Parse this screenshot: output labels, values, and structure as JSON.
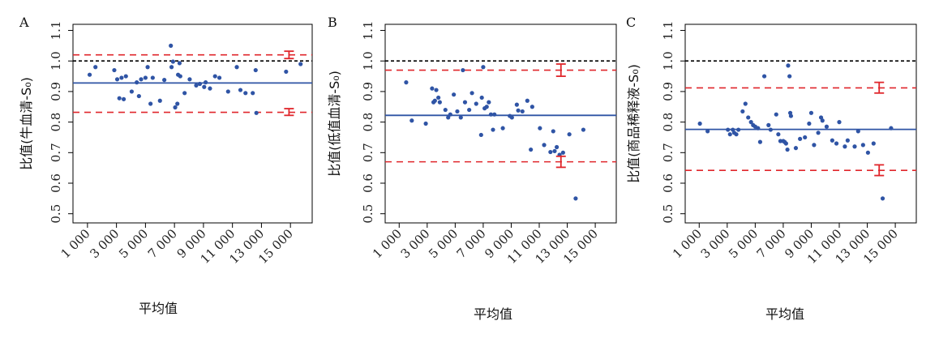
{
  "colors": {
    "points": "#2f54a5",
    "mean_line": "#2f54a5",
    "limit_line": "#e0262b",
    "reference_line": "#000000",
    "error_bar": "#e0262b",
    "frame": "#000000"
  },
  "chart_data": [
    {
      "type": "scatter",
      "panel_label": "A",
      "xlabel": "平均值",
      "ylabel": "比值(牛血清-S₀)",
      "xlim": [
        0,
        16500
      ],
      "ylim": [
        0.47,
        1.12
      ],
      "x_ticks": [
        1000,
        3000,
        5000,
        7000,
        9000,
        11000,
        13000,
        15000
      ],
      "x_tick_labels": [
        "1 000",
        "3 000",
        "5 000",
        "7 000",
        "9 000",
        "11 000",
        "13 000",
        "15 000"
      ],
      "y_ticks": [
        0.5,
        0.6,
        0.7,
        0.8,
        0.9,
        1.0,
        1.1
      ],
      "y_tick_labels": [
        "0.5",
        "0.6",
        "0.7",
        "0.8",
        "0.9",
        "1.0",
        "1.1"
      ],
      "reference_line": 1.0,
      "mean_line": 0.928,
      "upper_limit": 1.02,
      "lower_limit": 0.832,
      "limit_error_x": 14900,
      "upper_limit_ci": [
        1.008,
        1.032
      ],
      "lower_limit_ci": [
        0.822,
        0.844
      ],
      "points": [
        [
          1150,
          0.955
        ],
        [
          1550,
          0.98
        ],
        [
          2850,
          0.97
        ],
        [
          3050,
          0.94
        ],
        [
          3200,
          0.878
        ],
        [
          3350,
          0.945
        ],
        [
          3500,
          0.875
        ],
        [
          3650,
          0.95
        ],
        [
          4050,
          0.9
        ],
        [
          4400,
          0.93
        ],
        [
          4550,
          0.885
        ],
        [
          4700,
          0.94
        ],
        [
          5000,
          0.945
        ],
        [
          5150,
          0.98
        ],
        [
          5350,
          0.86
        ],
        [
          5500,
          0.945
        ],
        [
          6000,
          0.87
        ],
        [
          6300,
          0.938
        ],
        [
          6750,
          1.05
        ],
        [
          6800,
          0.98
        ],
        [
          6900,
          0.998
        ],
        [
          7050,
          0.848
        ],
        [
          7200,
          0.86
        ],
        [
          7250,
          0.955
        ],
        [
          7350,
          0.993
        ],
        [
          7400,
          0.95
        ],
        [
          7700,
          0.895
        ],
        [
          8050,
          0.94
        ],
        [
          8500,
          0.92
        ],
        [
          8750,
          0.925
        ],
        [
          9050,
          0.915
        ],
        [
          9150,
          0.93
        ],
        [
          9450,
          0.91
        ],
        [
          9800,
          0.95
        ],
        [
          10100,
          0.945
        ],
        [
          10700,
          0.9
        ],
        [
          11300,
          0.98
        ],
        [
          11550,
          0.905
        ],
        [
          11900,
          0.895
        ],
        [
          12400,
          0.895
        ],
        [
          12600,
          0.97
        ],
        [
          12650,
          0.83
        ],
        [
          14700,
          0.965
        ],
        [
          15700,
          0.99
        ]
      ]
    },
    {
      "type": "scatter",
      "panel_label": "B",
      "xlabel": "平均值",
      "ylabel": "比值(低值血清-S₀)",
      "xlim": [
        0,
        16500
      ],
      "ylim": [
        0.47,
        1.12
      ],
      "x_ticks": [
        1000,
        3000,
        5000,
        7000,
        9000,
        11000,
        13000,
        15000
      ],
      "x_tick_labels": [
        "1 000",
        "3 000",
        "5 000",
        "7 000",
        "9 000",
        "11 000",
        "13 000",
        "15 000"
      ],
      "y_ticks": [
        0.5,
        0.6,
        0.7,
        0.8,
        0.9,
        1.0,
        1.1
      ],
      "y_tick_labels": [
        "0.5",
        "0.6",
        "0.7",
        "0.8",
        "0.9",
        "1.0",
        "1.1"
      ],
      "reference_line": 1.0,
      "mean_line": 0.822,
      "upper_limit": 0.97,
      "lower_limit": 0.67,
      "limit_error_x": 12550,
      "upper_limit_ci": [
        0.95,
        0.99
      ],
      "lower_limit_ci": [
        0.652,
        0.688
      ],
      "points": [
        [
          1500,
          0.93
        ],
        [
          1900,
          0.805
        ],
        [
          2900,
          0.795
        ],
        [
          3350,
          0.91
        ],
        [
          3450,
          0.865
        ],
        [
          3550,
          0.87
        ],
        [
          3650,
          0.905
        ],
        [
          3800,
          0.88
        ],
        [
          3900,
          0.865
        ],
        [
          4300,
          0.84
        ],
        [
          4500,
          0.815
        ],
        [
          4650,
          0.825
        ],
        [
          4900,
          0.89
        ],
        [
          5150,
          0.835
        ],
        [
          5400,
          0.815
        ],
        [
          5550,
          0.97
        ],
        [
          5700,
          0.865
        ],
        [
          6000,
          0.84
        ],
        [
          6200,
          0.895
        ],
        [
          6500,
          0.86
        ],
        [
          6850,
          0.758
        ],
        [
          6900,
          0.88
        ],
        [
          7000,
          0.98
        ],
        [
          7100,
          0.845
        ],
        [
          7250,
          0.85
        ],
        [
          7400,
          0.865
        ],
        [
          7550,
          0.825
        ],
        [
          7700,
          0.775
        ],
        [
          7800,
          0.825
        ],
        [
          8400,
          0.78
        ],
        [
          8900,
          0.82
        ],
        [
          9050,
          0.815
        ],
        [
          9400,
          0.857
        ],
        [
          9500,
          0.838
        ],
        [
          9800,
          0.835
        ],
        [
          10150,
          0.87
        ],
        [
          10400,
          0.71
        ],
        [
          10500,
          0.85
        ],
        [
          11050,
          0.78
        ],
        [
          11350,
          0.725
        ],
        [
          11800,
          0.702
        ],
        [
          12000,
          0.77
        ],
        [
          12100,
          0.705
        ],
        [
          12250,
          0.718
        ],
        [
          12450,
          0.693
        ],
        [
          12700,
          0.7
        ],
        [
          13150,
          0.76
        ],
        [
          13600,
          0.55
        ],
        [
          14150,
          0.775
        ]
      ]
    },
    {
      "type": "scatter",
      "panel_label": "C",
      "xlabel": "平均值",
      "ylabel": "比值(商品稀释液-S₀)",
      "xlim": [
        0,
        16500
      ],
      "ylim": [
        0.47,
        1.12
      ],
      "x_ticks": [
        1000,
        3000,
        5000,
        7000,
        9000,
        11000,
        13000,
        15000
      ],
      "x_tick_labels": [
        "1 000",
        "3 000",
        "5 000",
        "7 000",
        "9 000",
        "11 000",
        "13 000",
        "15 000"
      ],
      "y_ticks": [
        0.5,
        0.6,
        0.7,
        0.8,
        0.9,
        1.0,
        1.1
      ],
      "y_tick_labels": [
        "0.5",
        "0.6",
        "0.7",
        "0.8",
        "0.9",
        "1.0",
        "1.1"
      ],
      "reference_line": 1.0,
      "mean_line": 0.776,
      "upper_limit": 0.912,
      "lower_limit": 0.642,
      "limit_error_x": 13850,
      "upper_limit_ci": [
        0.895,
        0.93
      ],
      "lower_limit_ci": [
        0.625,
        0.66
      ],
      "points": [
        [
          1050,
          0.795
        ],
        [
          1600,
          0.77
        ],
        [
          3050,
          0.775
        ],
        [
          3200,
          0.76
        ],
        [
          3400,
          0.775
        ],
        [
          3500,
          0.765
        ],
        [
          3650,
          0.76
        ],
        [
          3800,
          0.775
        ],
        [
          4100,
          0.835
        ],
        [
          4300,
          0.86
        ],
        [
          4500,
          0.815
        ],
        [
          4700,
          0.8
        ],
        [
          4850,
          0.79
        ],
        [
          5000,
          0.785
        ],
        [
          5200,
          0.78
        ],
        [
          5350,
          0.735
        ],
        [
          5650,
          0.95
        ],
        [
          5950,
          0.79
        ],
        [
          6100,
          0.775
        ],
        [
          6500,
          0.825
        ],
        [
          6650,
          0.76
        ],
        [
          6800,
          0.738
        ],
        [
          7000,
          0.738
        ],
        [
          7100,
          0.735
        ],
        [
          7200,
          0.73
        ],
        [
          7300,
          0.71
        ],
        [
          7350,
          0.985
        ],
        [
          7450,
          0.95
        ],
        [
          7500,
          0.83
        ],
        [
          7550,
          0.82
        ],
        [
          7900,
          0.715
        ],
        [
          8200,
          0.745
        ],
        [
          8550,
          0.75
        ],
        [
          8850,
          0.795
        ],
        [
          9000,
          0.83
        ],
        [
          9200,
          0.725
        ],
        [
          9500,
          0.765
        ],
        [
          9700,
          0.815
        ],
        [
          9800,
          0.805
        ],
        [
          10100,
          0.785
        ],
        [
          10500,
          0.74
        ],
        [
          10800,
          0.73
        ],
        [
          11000,
          0.8
        ],
        [
          11400,
          0.72
        ],
        [
          11600,
          0.74
        ],
        [
          12100,
          0.72
        ],
        [
          12350,
          0.77
        ],
        [
          12700,
          0.725
        ],
        [
          13050,
          0.7
        ],
        [
          13450,
          0.73
        ],
        [
          14100,
          0.55
        ],
        [
          14700,
          0.78
        ]
      ]
    }
  ]
}
